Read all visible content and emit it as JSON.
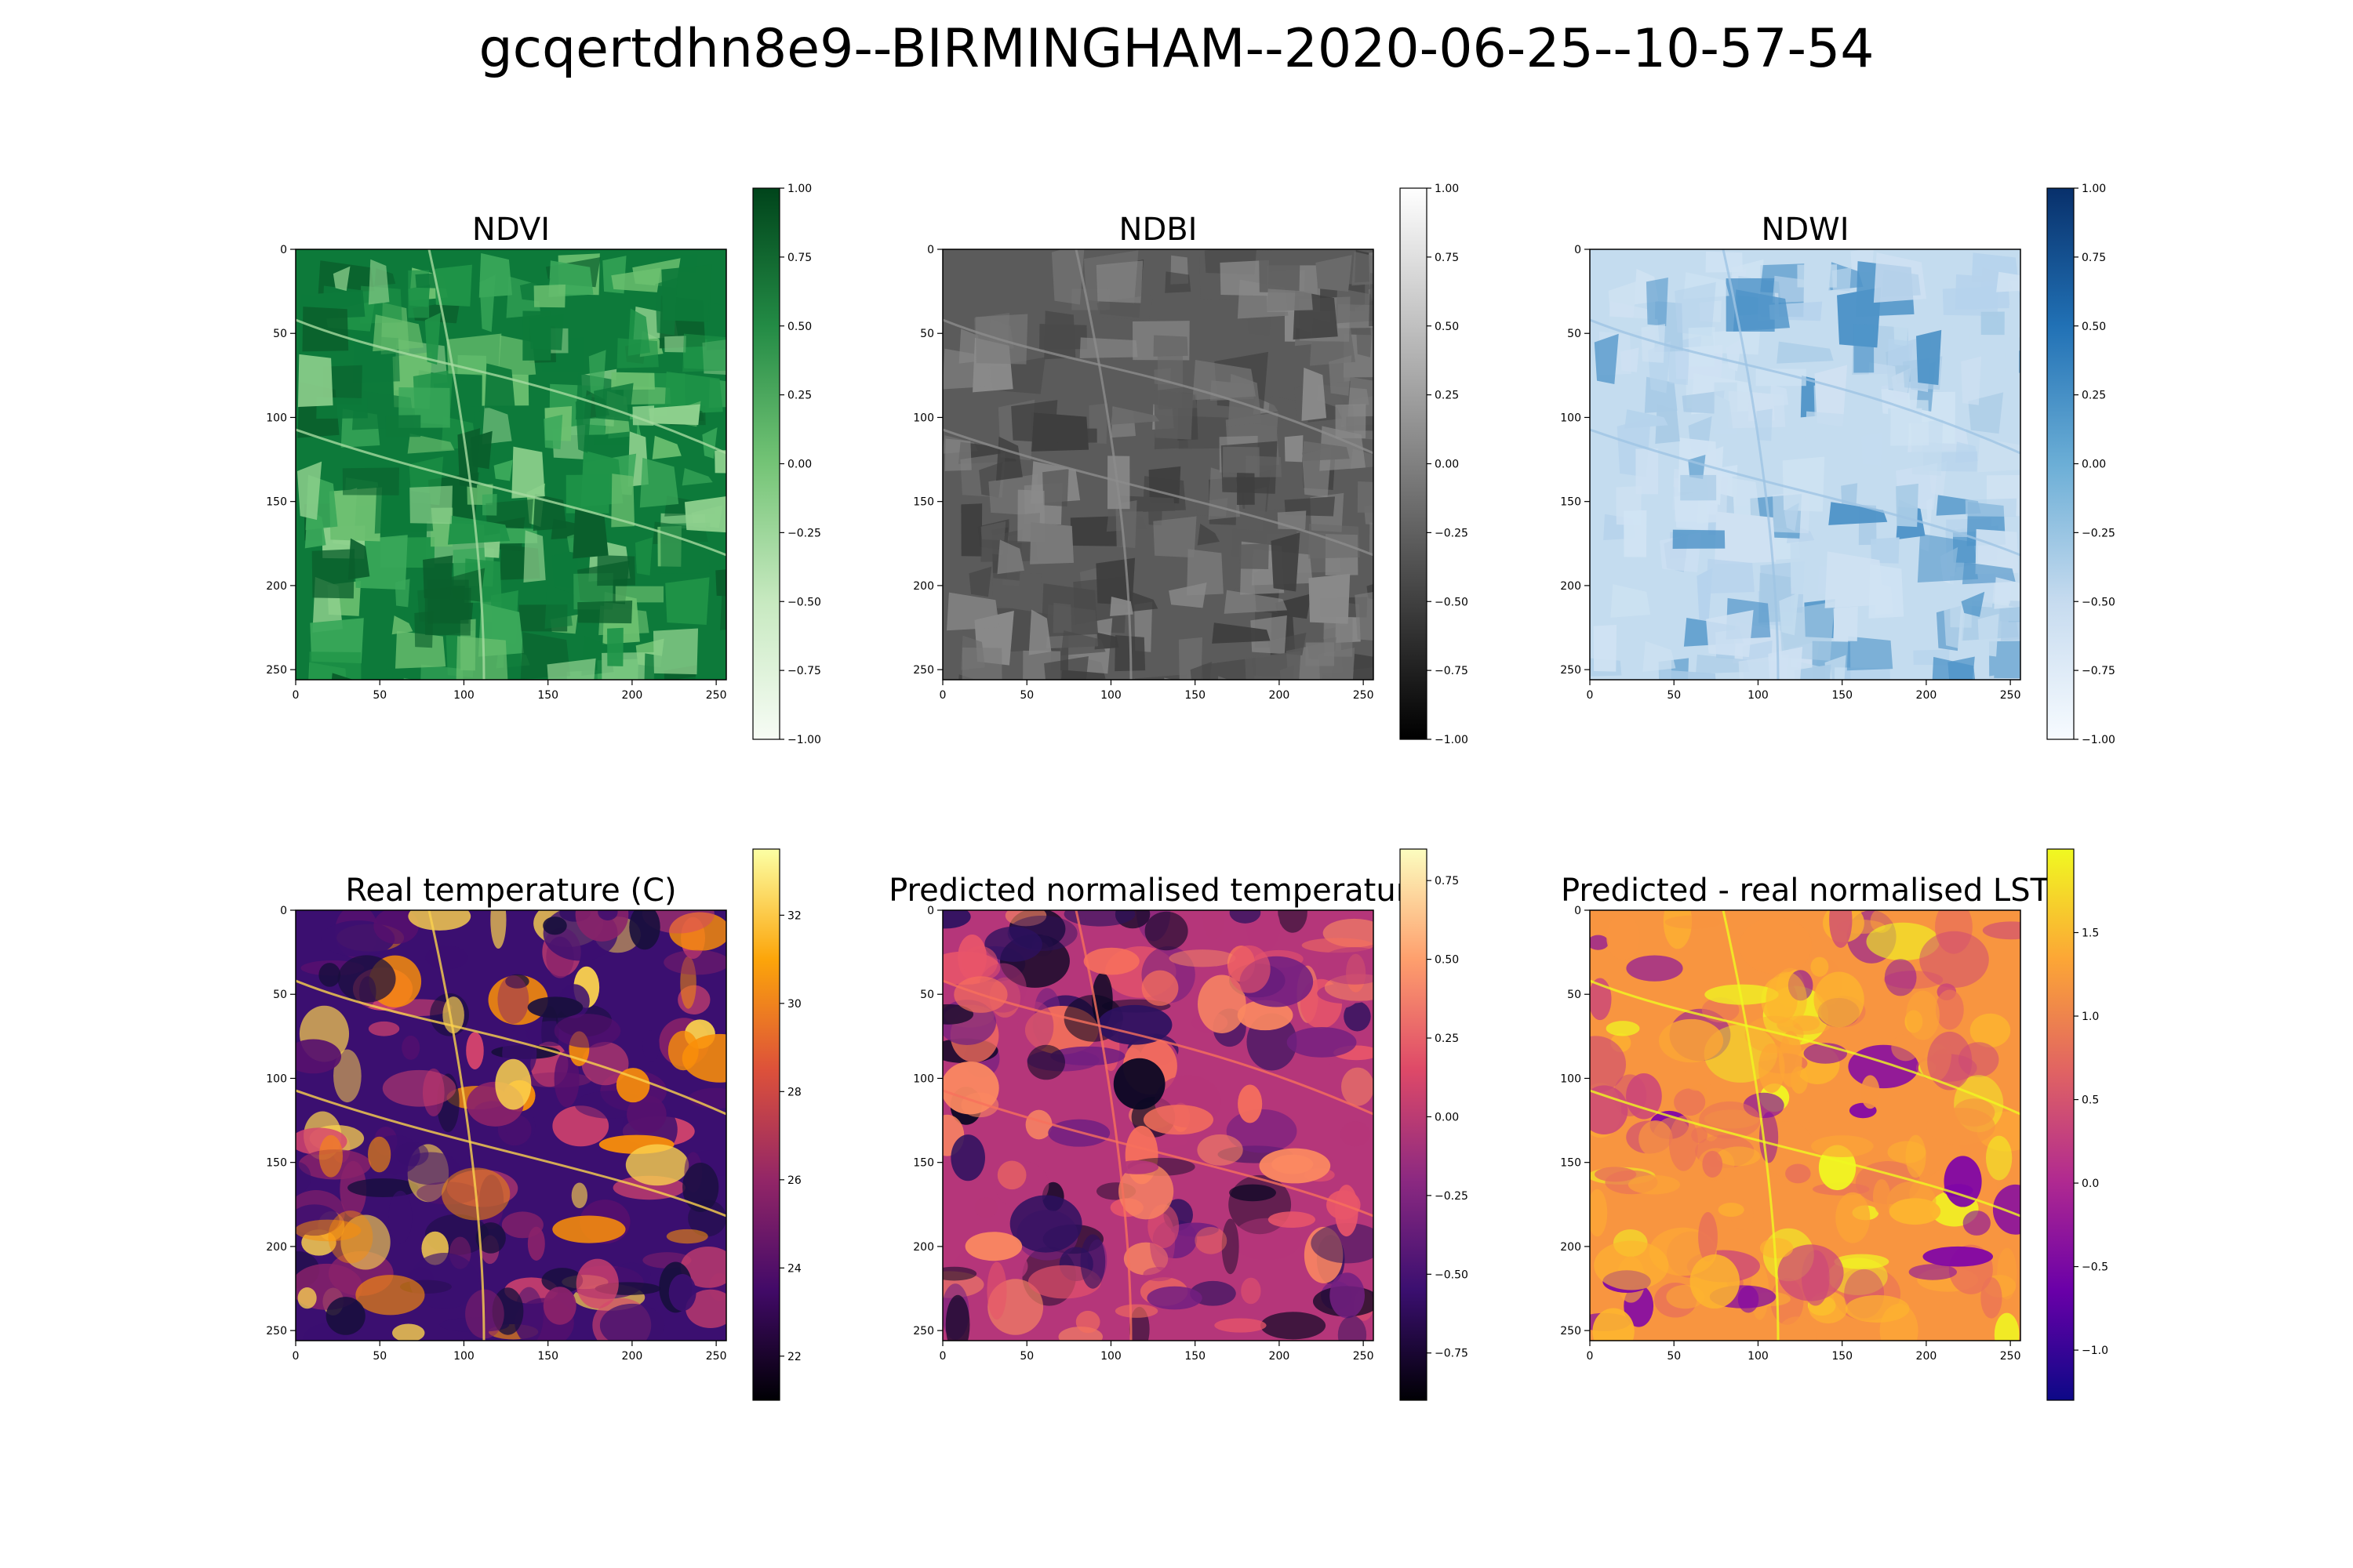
{
  "figure": {
    "title": "gcqertdhn8e9--BIRMINGHAM--2020-06-25--10-57-54"
  },
  "chart_data": [
    {
      "type": "heatmap",
      "title": "NDVI",
      "colormap": "Greens",
      "colormap_stops": [
        "#f7fcf5",
        "#c7e9c0",
        "#74c476",
        "#238b45",
        "#00441b"
      ],
      "image_colors": [
        "#0d7a3a",
        "#1f9448",
        "#3aa85a",
        "#8fd18e",
        "#0a5f2c",
        "#6cc070"
      ],
      "x_ticks": [
        0,
        50,
        100,
        150,
        200,
        250
      ],
      "y_ticks": [
        0,
        50,
        100,
        150,
        200,
        250
      ],
      "extent": [
        0,
        256
      ],
      "colorbar": {
        "range": [
          -1.0,
          1.0
        ],
        "ticks": [
          "1.00",
          "0.75",
          "0.50",
          "0.25",
          "0.00",
          "−0.25",
          "−0.50",
          "−0.75",
          "−1.00"
        ]
      }
    },
    {
      "type": "heatmap",
      "title": "NDBI",
      "colormap": "Greys_r",
      "colormap_stops": [
        "#000000",
        "#404040",
        "#808080",
        "#c0c0c0",
        "#ffffff"
      ],
      "image_colors": [
        "#5b5b5b",
        "#4a4a4a",
        "#6a6a6a",
        "#7a7a7a",
        "#3e3e3e",
        "#8a8a8a"
      ],
      "x_ticks": [
        0,
        50,
        100,
        150,
        200,
        250
      ],
      "y_ticks": [
        0,
        50,
        100,
        150,
        200,
        250
      ],
      "extent": [
        0,
        256
      ],
      "colorbar": {
        "range": [
          -1.0,
          1.0
        ],
        "ticks": [
          "1.00",
          "0.75",
          "0.50",
          "0.25",
          "0.00",
          "−0.25",
          "−0.50",
          "−0.75",
          "−1.00"
        ]
      }
    },
    {
      "type": "heatmap",
      "title": "NDWI",
      "colormap": "Blues",
      "colormap_stops": [
        "#f7fbff",
        "#c6dbef",
        "#6baed6",
        "#2171b5",
        "#08306b"
      ],
      "image_colors": [
        "#c4dcef",
        "#b6d3ec",
        "#d0e3f3",
        "#a9cbe6",
        "#4f94c8",
        "#cfe1f2"
      ],
      "x_ticks": [
        0,
        50,
        100,
        150,
        200,
        250
      ],
      "y_ticks": [
        0,
        50,
        100,
        150,
        200,
        250
      ],
      "extent": [
        0,
        256
      ],
      "colorbar": {
        "range": [
          -1.0,
          1.0
        ],
        "ticks": [
          "1.00",
          "0.75",
          "0.50",
          "0.25",
          "0.00",
          "−0.25",
          "−0.50",
          "−0.75",
          "−1.00"
        ]
      }
    },
    {
      "type": "heatmap",
      "title": "Real temperature (C)",
      "colormap": "inferno",
      "colormap_stops": [
        "#000004",
        "#420a68",
        "#932667",
        "#dd513a",
        "#fca50a",
        "#fcffa4"
      ],
      "image_colors": [
        "#3b0f70",
        "#57106e",
        "#8a226a",
        "#d6446d",
        "#f98e09",
        "#fbd24e",
        "#180f3d"
      ],
      "x_ticks": [
        0,
        50,
        100,
        150,
        200,
        250
      ],
      "y_ticks": [
        0,
        50,
        100,
        150,
        200,
        250
      ],
      "extent": [
        0,
        256
      ],
      "colorbar": {
        "range": [
          21.0,
          33.5
        ],
        "ticks": [
          "32",
          "30",
          "28",
          "26",
          "24",
          "22"
        ],
        "tick_values": [
          32,
          30,
          28,
          26,
          24,
          22
        ]
      }
    },
    {
      "type": "heatmap",
      "title": "Predicted normalised temperature",
      "colormap": "magma",
      "colormap_stops": [
        "#000004",
        "#3b0f70",
        "#8c2981",
        "#de4968",
        "#fe9f6d",
        "#fcfdbf"
      ],
      "image_colors": [
        "#b5367a",
        "#e8556a",
        "#fb8861",
        "#721f81",
        "#2c115f",
        "#f7705c",
        "#0b0724"
      ],
      "x_ticks": [
        0,
        50,
        100,
        150,
        200,
        250
      ],
      "y_ticks": [
        0,
        50,
        100,
        150,
        200,
        250
      ],
      "extent": [
        0,
        256
      ],
      "colorbar": {
        "range": [
          -0.9,
          0.85
        ],
        "ticks": [
          "0.75",
          "0.50",
          "0.25",
          "0.00",
          "−0.25",
          "−0.50",
          "−0.75"
        ],
        "tick_values": [
          0.75,
          0.5,
          0.25,
          0.0,
          -0.25,
          -0.5,
          -0.75
        ]
      }
    },
    {
      "type": "heatmap",
      "title": "Predicted - real normalised LST",
      "colormap": "plasma",
      "colormap_stops": [
        "#0d0887",
        "#6a00a8",
        "#b12a90",
        "#e16462",
        "#fca636",
        "#f0f921"
      ],
      "image_colors": [
        "#f89540",
        "#fdb42f",
        "#e97158",
        "#cc4778",
        "#7e03a8",
        "#f0f921",
        "#fca636"
      ],
      "x_ticks": [
        0,
        50,
        100,
        150,
        200,
        250
      ],
      "y_ticks": [
        0,
        50,
        100,
        150,
        200,
        250
      ],
      "extent": [
        0,
        256
      ],
      "colorbar": {
        "range": [
          -1.3,
          2.0
        ],
        "ticks": [
          "1.5",
          "1.0",
          "0.5",
          "0.0",
          "−0.5",
          "−1.0"
        ],
        "tick_values": [
          1.5,
          1.0,
          0.5,
          0.0,
          -0.5,
          -1.0
        ]
      }
    }
  ]
}
